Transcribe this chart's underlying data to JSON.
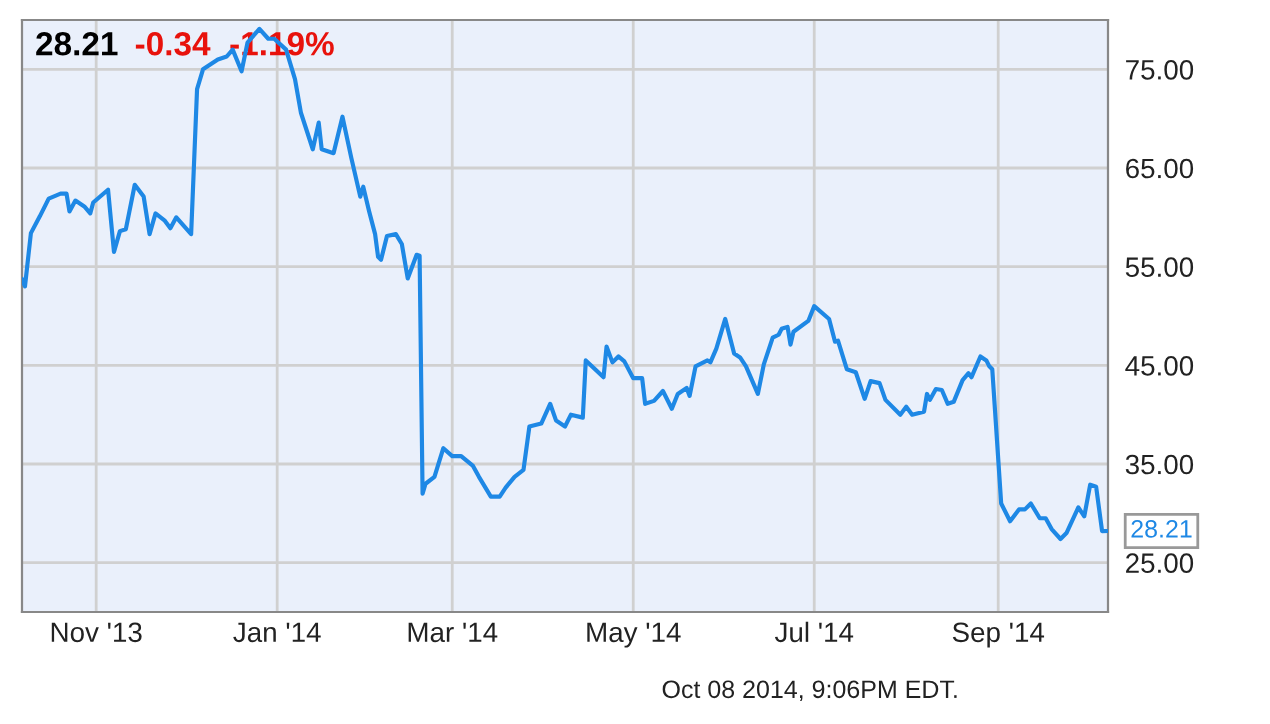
{
  "chart_data": {
    "type": "line",
    "title": "28.21",
    "subtitle": "-0.34  -1.19%",
    "x": [
      "2013-10-07",
      "2013-10-08",
      "2013-10-10",
      "2013-10-13",
      "2013-10-16",
      "2013-10-20",
      "2013-10-22",
      "2013-10-23",
      "2013-10-25",
      "2013-10-28",
      "2013-10-30",
      "2013-10-31",
      "2013-11-05",
      "2013-11-07",
      "2013-11-09",
      "2013-11-11",
      "2013-11-14",
      "2013-11-17",
      "2013-11-19",
      "2013-11-21",
      "2013-11-24",
      "2013-11-26",
      "2013-11-28",
      "2013-12-03",
      "2013-12-05",
      "2013-12-07",
      "2013-12-12",
      "2013-12-15",
      "2013-12-17",
      "2013-12-20",
      "2013-12-22",
      "2013-12-26",
      "2013-12-29",
      "2013-12-31",
      "2014-01-04",
      "2014-01-07",
      "2014-01-09",
      "2014-01-13",
      "2014-01-15",
      "2014-01-16",
      "2014-01-20",
      "2014-01-23",
      "2014-01-26",
      "2014-01-29",
      "2014-01-30",
      "2014-02-01",
      "2014-02-03",
      "2014-02-04",
      "2014-02-05",
      "2014-02-07",
      "2014-02-10",
      "2014-02-12",
      "2014-02-14",
      "2014-02-17",
      "2014-02-18",
      "2014-02-19",
      "2014-02-20",
      "2014-02-23",
      "2014-02-26",
      "2014-03-01",
      "2014-03-04",
      "2014-03-08",
      "2014-03-10",
      "2014-03-14",
      "2014-03-17",
      "2014-03-19",
      "2014-03-22",
      "2014-03-25",
      "2014-03-27",
      "2014-03-31",
      "2014-04-03",
      "2014-04-05",
      "2014-04-08",
      "2014-04-10",
      "2014-04-14",
      "2014-04-15",
      "2014-04-21",
      "2014-04-22",
      "2014-04-24",
      "2014-04-26",
      "2014-04-28",
      "2014-05-01",
      "2014-05-04",
      "2014-05-05",
      "2014-05-08",
      "2014-05-11",
      "2014-05-14",
      "2014-05-16",
      "2014-05-19",
      "2014-05-20",
      "2014-05-22",
      "2014-05-26",
      "2014-05-27",
      "2014-05-29",
      "2014-06-01",
      "2014-06-04",
      "2014-06-06",
      "2014-06-08",
      "2014-06-12",
      "2014-06-14",
      "2014-06-17",
      "2014-06-19",
      "2014-06-20",
      "2014-06-22",
      "2014-06-23",
      "2014-06-24",
      "2014-06-29",
      "2014-07-01",
      "2014-07-06",
      "2014-07-08",
      "2014-07-09",
      "2014-07-12",
      "2014-07-15",
      "2014-07-18",
      "2014-07-20",
      "2014-07-23",
      "2014-07-25",
      "2014-07-30",
      "2014-08-01",
      "2014-08-03",
      "2014-08-07",
      "2014-08-08",
      "2014-08-09",
      "2014-08-11",
      "2014-08-13",
      "2014-08-15",
      "2014-08-17",
      "2014-08-20",
      "2014-08-22",
      "2014-08-23",
      "2014-08-26",
      "2014-08-28",
      "2014-08-29",
      "2014-08-30",
      "2014-09-02",
      "2014-09-05",
      "2014-09-08",
      "2014-09-10",
      "2014-09-12",
      "2014-09-15",
      "2014-09-17",
      "2014-09-19",
      "2014-09-22",
      "2014-09-24",
      "2014-09-28",
      "2014-09-30",
      "2014-10-02",
      "2014-10-04",
      "2014-10-06",
      "2014-10-08"
    ],
    "values": [
      53.7,
      53.0,
      58.4,
      60.1,
      61.9,
      62.4,
      62.4,
      60.6,
      61.7,
      61.1,
      60.4,
      61.5,
      62.8,
      56.5,
      58.6,
      58.8,
      63.3,
      62.1,
      58.3,
      60.4,
      59.7,
      58.9,
      60.0,
      58.3,
      73.0,
      75.0,
      76.0,
      76.3,
      77.0,
      74.8,
      77.7,
      79.1,
      78.1,
      78.1,
      77.0,
      74.0,
      70.6,
      66.9,
      69.6,
      66.9,
      66.5,
      70.2,
      66.0,
      62.1,
      63.1,
      60.6,
      58.3,
      56.0,
      55.7,
      58.1,
      58.3,
      57.3,
      53.8,
      56.2,
      56.1,
      32.0,
      33.0,
      33.7,
      36.6,
      35.8,
      35.8,
      34.8,
      33.7,
      31.7,
      31.7,
      32.6,
      33.7,
      34.4,
      38.8,
      39.1,
      41.1,
      39.4,
      38.8,
      40.0,
      39.7,
      45.5,
      43.8,
      46.9,
      45.3,
      45.9,
      45.4,
      43.7,
      43.7,
      41.1,
      41.4,
      42.4,
      40.6,
      42.1,
      42.7,
      41.9,
      44.9,
      45.5,
      45.3,
      46.7,
      49.7,
      46.2,
      45.8,
      44.9,
      42.1,
      45.1,
      47.8,
      48.1,
      48.7,
      48.9,
      47.1,
      48.4,
      49.5,
      51.0,
      49.7,
      47.4,
      47.5,
      44.6,
      44.3,
      41.6,
      43.4,
      43.2,
      41.5,
      40.0,
      40.8,
      40.0,
      40.3,
      42.1,
      41.5,
      42.6,
      42.5,
      41.1,
      41.3,
      43.5,
      44.2,
      43.8,
      45.9,
      45.5,
      44.9,
      44.6,
      31.0,
      29.2,
      30.4,
      30.4,
      31.0,
      29.5,
      29.5,
      28.4,
      27.4,
      28.0,
      30.6,
      29.7,
      32.9,
      32.7,
      28.2,
      28.21
    ],
    "color": "#1e88e5",
    "xlim": [
      "2013-10-07",
      "2014-10-08"
    ],
    "xticks": [
      {
        "value": "2013-11-01",
        "label": "Nov '13"
      },
      {
        "value": "2014-01-01",
        "label": "Jan '14"
      },
      {
        "value": "2014-03-01",
        "label": "Mar '14"
      },
      {
        "value": "2014-05-01",
        "label": "May '14"
      },
      {
        "value": "2014-07-01",
        "label": "Jul '14"
      },
      {
        "value": "2014-09-01",
        "label": "Sep '14"
      }
    ],
    "ylim": [
      20,
      80
    ],
    "yticks": [
      {
        "value": 25,
        "label": "25.00"
      },
      {
        "value": 35,
        "label": "35.00"
      },
      {
        "value": 45,
        "label": "45.00"
      },
      {
        "value": 55,
        "label": "55.00"
      },
      {
        "value": 65,
        "label": "65.00"
      },
      {
        "value": 75,
        "label": "75.00"
      }
    ],
    "grid": true,
    "legend": false,
    "marker": "none",
    "line_style": "solid",
    "annotations": [
      {
        "text": "28.21",
        "x": "2014-10-08",
        "y": 28.21
      },
      "Oct 08 2014, 9:06PM EDT."
    ]
  }
}
